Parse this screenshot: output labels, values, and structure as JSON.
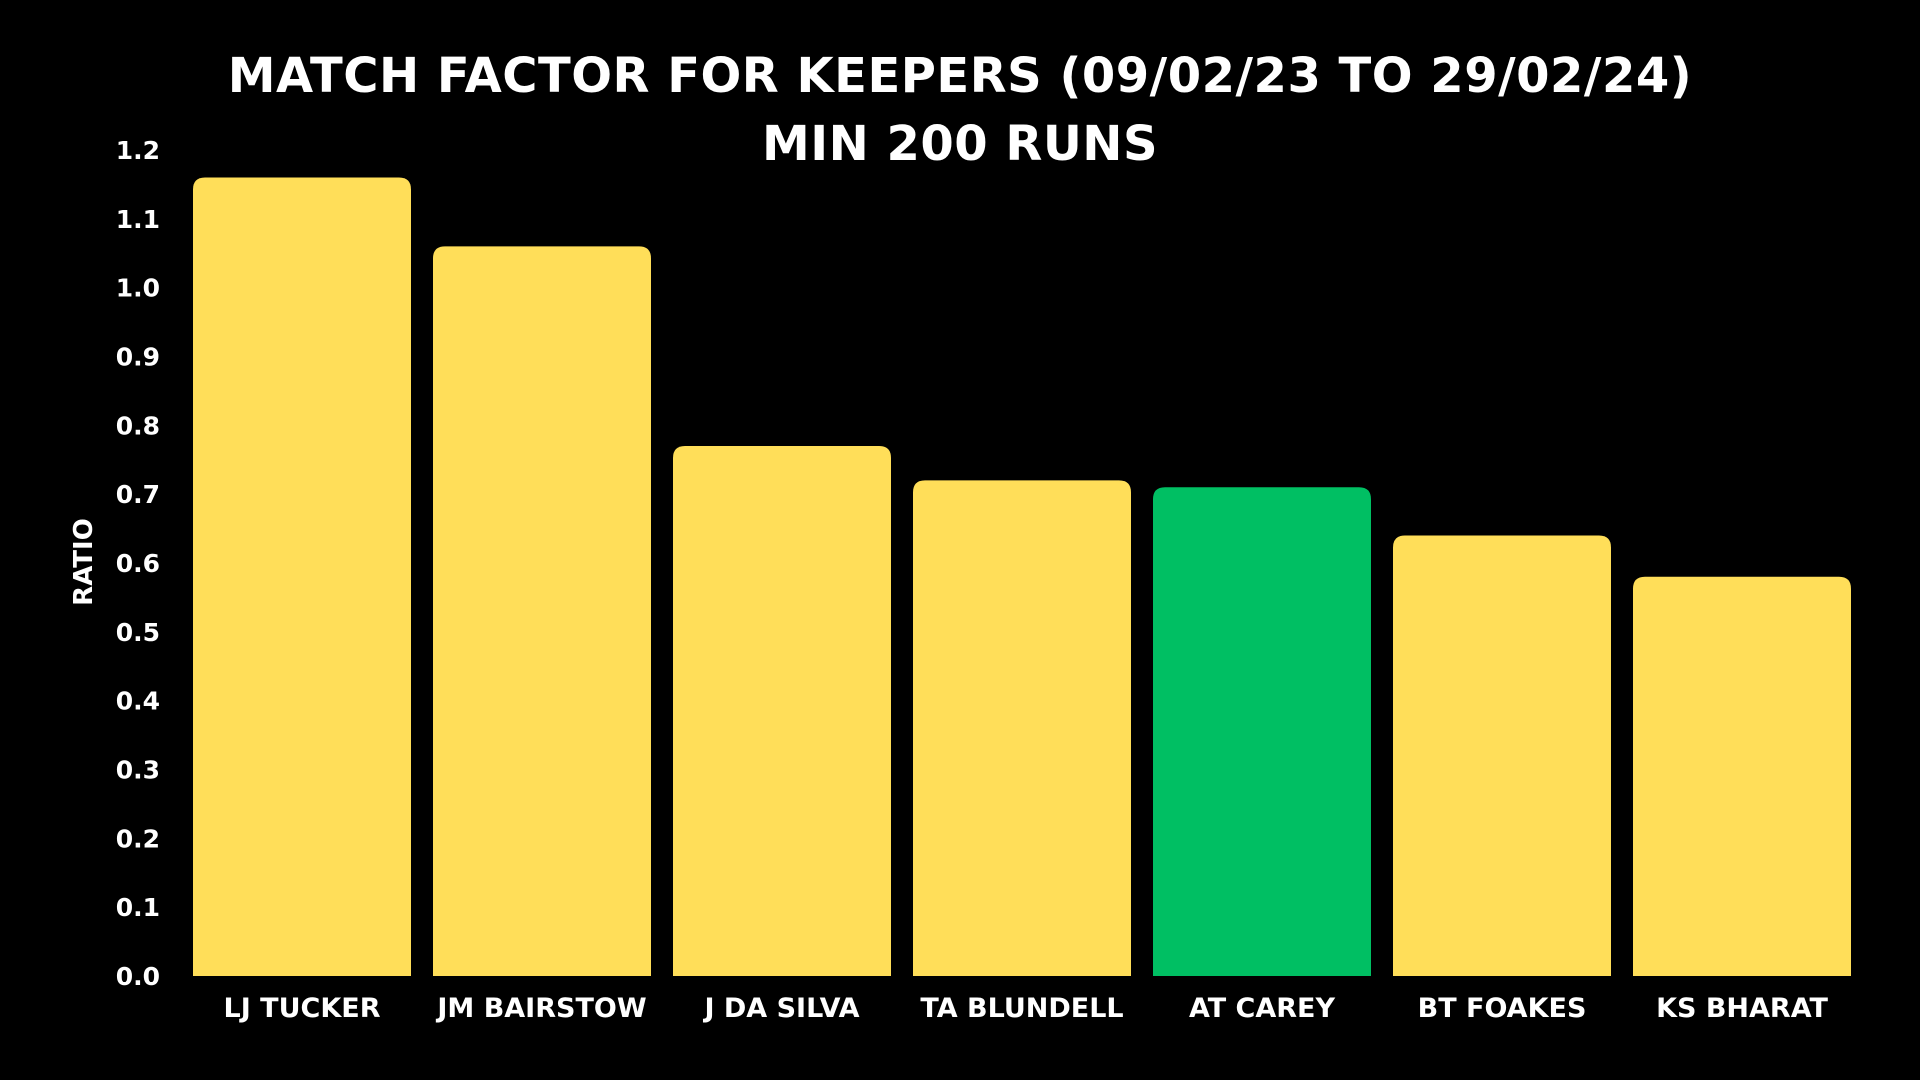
{
  "chart_data": {
    "type": "bar",
    "title_lines": [
      "MATCH FACTOR FOR KEEPERS (09/02/23 TO 29/02/24)",
      "MIN 200 RUNS"
    ],
    "xlabel": "",
    "ylabel": "RATIO",
    "ylim": [
      0,
      1.2
    ],
    "y_ticks": [
      "0.0",
      "0.1",
      "0.2",
      "0.3",
      "0.4",
      "0.5",
      "0.6",
      "0.7",
      "0.8",
      "0.9",
      "1.0",
      "1.1",
      "1.2"
    ],
    "categories": [
      "LJ TUCKER",
      "JM BAIRSTOW",
      "J DA SILVA",
      "TA BLUNDELL",
      "AT CAREY",
      "BT FOAKES",
      "KS BHARAT"
    ],
    "values": [
      1.16,
      1.06,
      0.77,
      0.72,
      0.71,
      0.64,
      0.58
    ],
    "highlight": "AT CAREY",
    "grid": false,
    "legend": "none",
    "colors": {
      "background": "#000000",
      "bar": "#FFDE59",
      "highlight_bar": "#00BF63",
      "text": "#FFFFFF"
    }
  }
}
